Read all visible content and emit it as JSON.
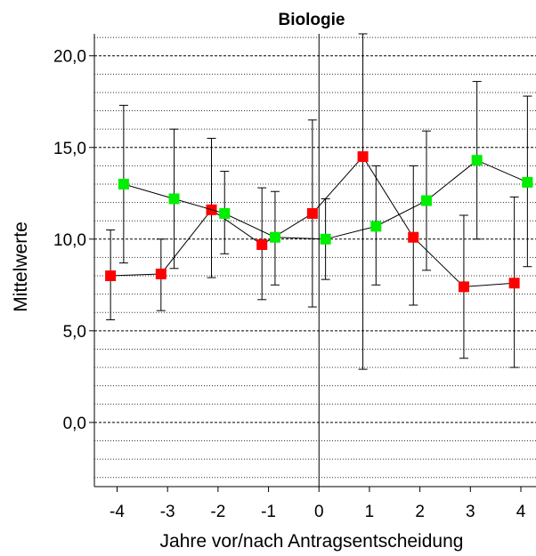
{
  "chart_data": {
    "type": "line",
    "title": "Biologie",
    "xlabel": "Jahre vor/nach Antragsentscheidung",
    "ylabel": "Mittelwerte",
    "x_ticks": [
      "-4",
      "-3",
      "-2",
      "-1",
      "0",
      "1",
      "2",
      "3",
      "4"
    ],
    "y_ticks": [
      "0,0",
      "5,0",
      "10,0",
      "15,0",
      "20,0"
    ],
    "xlim": [
      -4.45,
      4.3
    ],
    "ylim": [
      -3.5,
      21.2
    ],
    "grid": {
      "major_dashed": [
        0,
        5,
        10,
        15,
        20
      ],
      "minor_dotted_step": 1
    },
    "reference_line_x": 0,
    "series": [
      {
        "color": "#ff0000",
        "marker": "square",
        "points": [
          {
            "x": -4,
            "y": 8.0,
            "lo": 5.6,
            "hi": 10.5
          },
          {
            "x": -3,
            "y": 8.1,
            "lo": 6.1,
            "hi": 10.0
          },
          {
            "x": -2,
            "y": 11.6,
            "lo": 7.9,
            "hi": 15.5
          },
          {
            "x": -1,
            "y": 9.7,
            "lo": 6.7,
            "hi": 12.8
          },
          {
            "x": 0,
            "y": 11.4,
            "lo": 6.3,
            "hi": 16.5
          },
          {
            "x": 1,
            "y": 14.5,
            "lo": 2.9,
            "hi": 21.2
          },
          {
            "x": 2,
            "y": 10.1,
            "lo": 6.4,
            "hi": 14.0
          },
          {
            "x": 3,
            "y": 7.4,
            "lo": 3.5,
            "hi": 11.3
          },
          {
            "x": 4,
            "y": 7.6,
            "lo": 3.0,
            "hi": 12.3
          }
        ]
      },
      {
        "color": "#00ee00",
        "marker": "square",
        "points": [
          {
            "x": -4,
            "y": 13.0,
            "lo": 8.7,
            "hi": 17.3
          },
          {
            "x": -3,
            "y": 12.2,
            "lo": 8.4,
            "hi": 16.0
          },
          {
            "x": -2,
            "y": 11.4,
            "lo": 9.2,
            "hi": 13.7
          },
          {
            "x": -1,
            "y": 10.1,
            "lo": 7.5,
            "hi": 12.6
          },
          {
            "x": 0,
            "y": 10.0,
            "lo": 7.8,
            "hi": 12.2
          },
          {
            "x": 1,
            "y": 10.7,
            "lo": 7.5,
            "hi": 14.0
          },
          {
            "x": 2,
            "y": 12.1,
            "lo": 8.3,
            "hi": 15.9
          },
          {
            "x": 3,
            "y": 14.3,
            "lo": 10.0,
            "hi": 18.6
          },
          {
            "x": 4,
            "y": 13.1,
            "lo": 8.5,
            "hi": 17.8
          }
        ]
      }
    ]
  }
}
